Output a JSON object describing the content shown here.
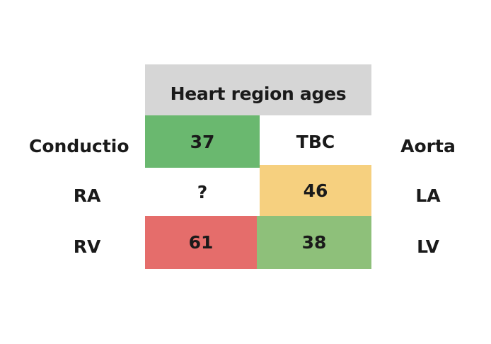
{
  "title": "Heart region ages",
  "rows": [
    {
      "left_label": "Conductio",
      "cells": [
        {
          "text": "37",
          "color": "#6ab86f"
        },
        {
          "text": "TBC",
          "color": "#ffffff"
        }
      ],
      "right_label": "Aorta"
    },
    {
      "left_label": "RA",
      "cells": [
        {
          "text": "?",
          "color": "#ffffff"
        },
        {
          "text": "46",
          "color": "#f6d07f"
        }
      ],
      "right_label": "LA"
    },
    {
      "left_label": "RV",
      "cells": [
        {
          "text": "61",
          "color": "#e56d6b"
        },
        {
          "text": "38",
          "color": "#8ec07a"
        }
      ],
      "right_label": "LV"
    }
  ]
}
